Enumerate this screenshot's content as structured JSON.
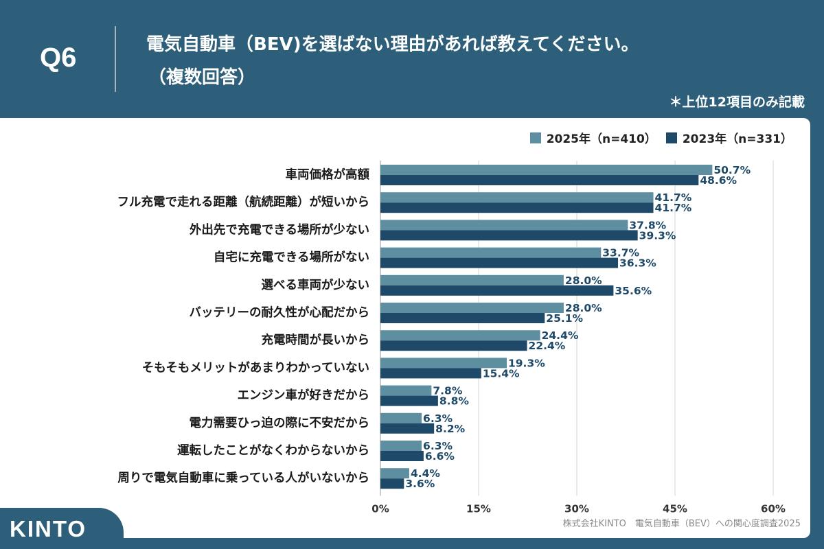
{
  "header": {
    "q_label": "Q6",
    "title_line1": "電気自動車（BEV)を選ばない理由があれば教えてください。",
    "title_line2": "（複数回答）",
    "note": "＊上位12項目のみ記載"
  },
  "colors": {
    "background": "#2e5f7a",
    "series_2025": "#5d8fa1",
    "series_2023": "#1e4968",
    "grid": "#d6d6d6"
  },
  "chart_data": {
    "type": "bar",
    "orientation": "horizontal",
    "categories": [
      "車両価格が高額",
      "フル充電で走れる距離（航続距離）が短いから",
      "外出先で充電できる場所が少ない",
      "自宅に充電できる場所がない",
      "選べる車両が少ない",
      "バッテリーの耐久性が心配だから",
      "充電時間が長いから",
      "そもそもメリットがあまりわかっていない",
      "エンジン車が好きだから",
      "電力需要ひっ迫の際に不安だから",
      "運転したことがなくわからないから",
      "周りで電気自動車に乗っている人がいないから"
    ],
    "series": [
      {
        "name": "2025年（n=410）",
        "values": [
          50.7,
          41.7,
          37.8,
          33.7,
          28.0,
          28.0,
          24.4,
          19.3,
          7.8,
          6.3,
          6.3,
          4.4
        ],
        "labels": [
          "50.7%",
          "41.7%",
          "37.8%",
          "33.7%",
          "28.0%",
          "28.0%",
          "24.4%",
          "19.3%",
          "7.8%",
          "6.3%",
          "6.3%",
          "4.4%"
        ]
      },
      {
        "name": "2023年（n=331）",
        "values": [
          48.6,
          41.7,
          39.3,
          36.3,
          35.6,
          25.1,
          22.4,
          15.4,
          8.8,
          8.2,
          6.6,
          3.6
        ],
        "labels": [
          "48.6%",
          "41.7%",
          "39.3%",
          "36.3%",
          "35.6%",
          "25.1%",
          "22.4%",
          "15.4%",
          "8.8%",
          "8.2%",
          "6.6%",
          "3.6%"
        ]
      }
    ],
    "xlim": [
      0,
      60
    ],
    "xticks": [
      0,
      15,
      30,
      45,
      60
    ],
    "xtick_labels": [
      "0%",
      "15%",
      "30%",
      "45%",
      "60%"
    ],
    "grid": true,
    "legend_position": "top-right"
  },
  "footer": {
    "source": "株式会社KINTO　電気自動車（BEV）への関心度調査2025",
    "logo": "KINTO"
  }
}
